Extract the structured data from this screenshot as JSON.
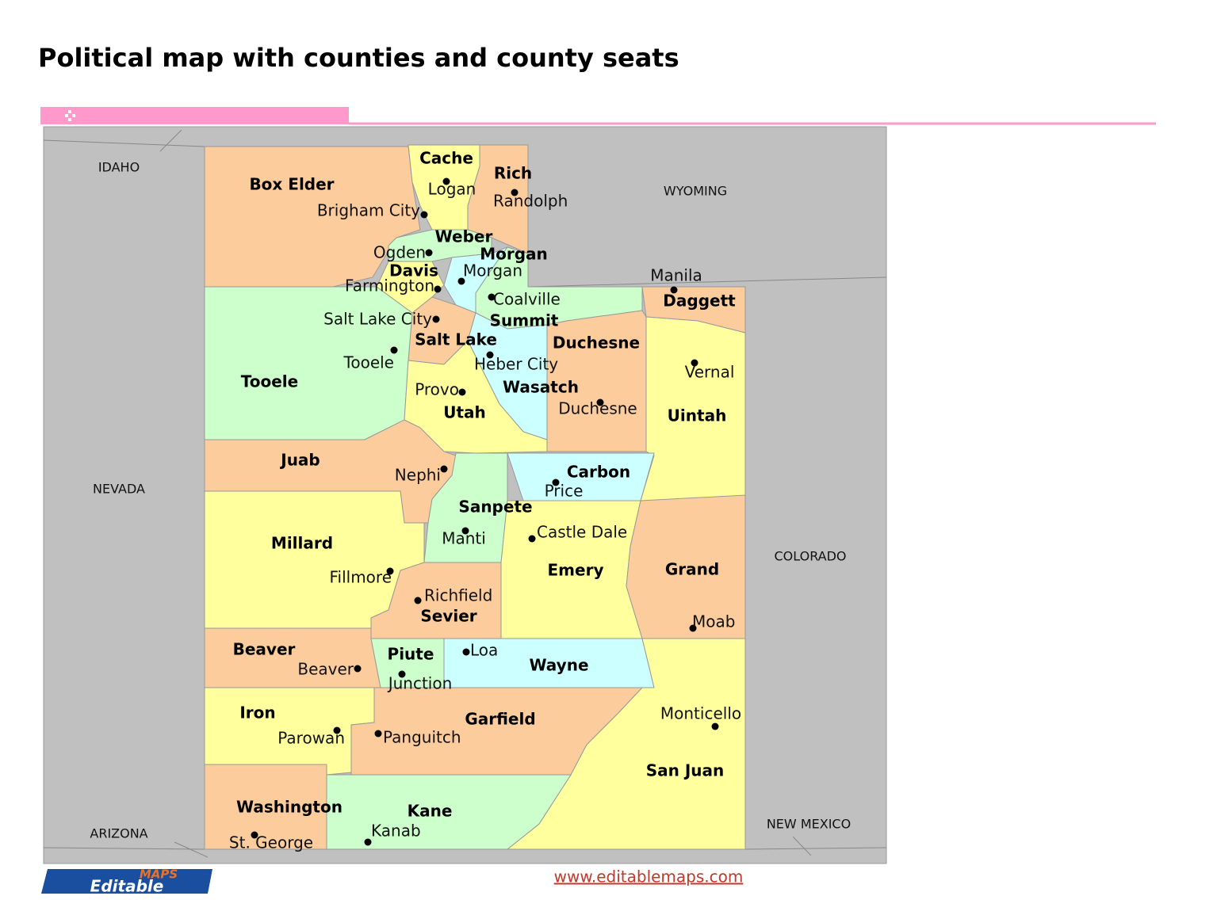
{
  "header": {
    "title": "Political map with counties and county seats"
  },
  "states": [
    "IDAHO",
    "WYOMING",
    "NEVADA",
    "COLORADO",
    "ARIZONA",
    "NEW MEXICO"
  ],
  "counties": [
    {
      "name": "Box Elder",
      "seat": "Brigham City",
      "color": "#fccc9c"
    },
    {
      "name": "Cache",
      "seat": "Logan",
      "color": "#ffff9d"
    },
    {
      "name": "Rich",
      "seat": "Randolph",
      "color": "#fccc9c"
    },
    {
      "name": "Weber",
      "seat": "Ogden",
      "color": "#ccffcc"
    },
    {
      "name": "Morgan",
      "seat": "Morgan",
      "color": "#ccffff"
    },
    {
      "name": "Davis",
      "seat": "Farmington",
      "color": "#ffff9d"
    },
    {
      "name": "Summit",
      "seat": "Coalville",
      "color": "#ccffcc"
    },
    {
      "name": "Daggett",
      "seat": "Manila",
      "color": "#fccc9c"
    },
    {
      "name": "Salt Lake",
      "seat": "Salt Lake City",
      "color": "#fccc9c"
    },
    {
      "name": "Tooele",
      "seat": "Tooele",
      "color": "#ccffcc"
    },
    {
      "name": "Wasatch",
      "seat": "Heber City",
      "color": "#ccffff"
    },
    {
      "name": "Duchesne",
      "seat": "Duchesne",
      "color": "#fccc9c"
    },
    {
      "name": "Uintah",
      "seat": "Vernal",
      "color": "#ffff9d"
    },
    {
      "name": "Utah",
      "seat": "Provo",
      "color": "#ffff9d"
    },
    {
      "name": "Juab",
      "seat": "Nephi",
      "color": "#fccc9c"
    },
    {
      "name": "Carbon",
      "seat": "Price",
      "color": "#ccffff"
    },
    {
      "name": "Sanpete",
      "seat": "Manti",
      "color": "#ccffcc"
    },
    {
      "name": "Millard",
      "seat": "Fillmore",
      "color": "#ffff9d"
    },
    {
      "name": "Emery",
      "seat": "Castle Dale",
      "color": "#ffff9d"
    },
    {
      "name": "Grand",
      "seat": "Moab",
      "color": "#fccc9c"
    },
    {
      "name": "Sevier",
      "seat": "Richfield",
      "color": "#fccc9c"
    },
    {
      "name": "Beaver",
      "seat": "Beaver",
      "color": "#fccc9c"
    },
    {
      "name": "Piute",
      "seat": "Junction",
      "color": "#ccffcc"
    },
    {
      "name": "Wayne",
      "seat": "Loa",
      "color": "#ccffff"
    },
    {
      "name": "Iron",
      "seat": "Parowan",
      "color": "#ffff9d"
    },
    {
      "name": "Garfield",
      "seat": "Panguitch",
      "color": "#fccc9c"
    },
    {
      "name": "San Juan",
      "seat": "Monticello",
      "color": "#ffff9d"
    },
    {
      "name": "Washington",
      "seat": "St. George",
      "color": "#fccc9c"
    },
    {
      "name": "Kane",
      "seat": "Kanab",
      "color": "#ccffcc"
    }
  ],
  "footer": {
    "url": "www.editablemaps.com",
    "logo_top": "MAPS",
    "logo_bottom": "Editable"
  }
}
